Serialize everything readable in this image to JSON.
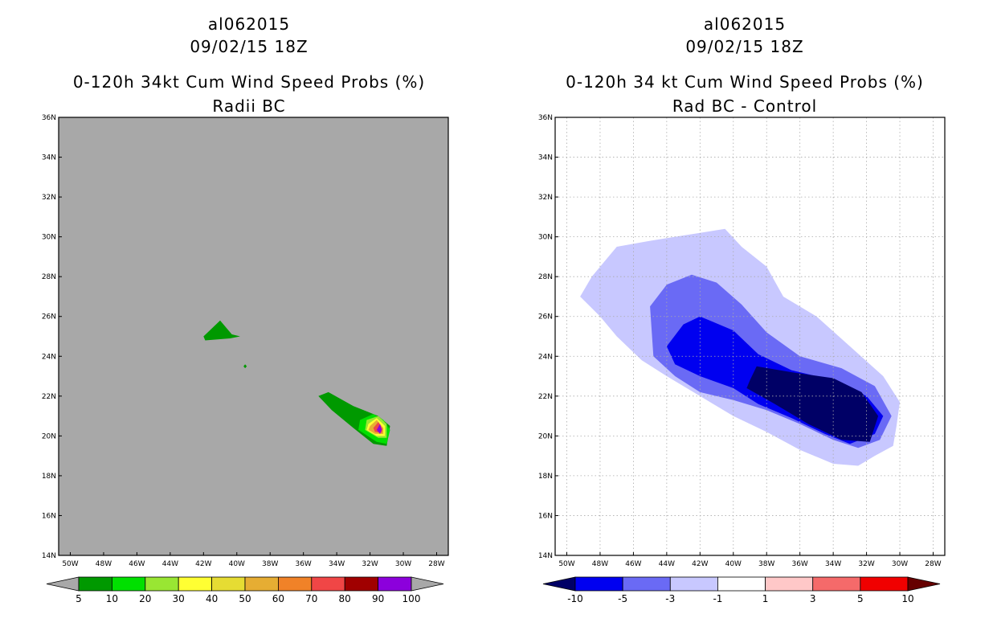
{
  "chart_data": [
    {
      "type": "contour-map",
      "id_line": "al062015",
      "date_line": "09/02/15 18Z",
      "title": "0-120h 34kt Cum Wind Speed Probs (%)",
      "subtitle": "Radii BC",
      "background_color": "#a8a8a8",
      "grid": false,
      "lon_ticks": [
        "50W",
        "48W",
        "46W",
        "44W",
        "42W",
        "40W",
        "38W",
        "36W",
        "34W",
        "32W",
        "30W",
        "28W"
      ],
      "lat_ticks": [
        "14N",
        "16N",
        "18N",
        "20N",
        "22N",
        "24N",
        "26N",
        "28N",
        "30N",
        "32N",
        "34N",
        "36N"
      ],
      "lon_range": [
        -50.7,
        -27.3
      ],
      "lat_range": [
        14,
        36
      ],
      "colorbar": {
        "labels": [
          "5",
          "10",
          "20",
          "30",
          "40",
          "50",
          "60",
          "70",
          "80",
          "90",
          "100"
        ],
        "colors": [
          "#009900",
          "#00e000",
          "#99e633",
          "#ffff33",
          "#e6dc33",
          "#e6ad33",
          "#f08228",
          "#f04646",
          "#a00000",
          "#8c00dc"
        ],
        "under_color": "#a8a8a8",
        "over_color": "#a8a8a8"
      },
      "regions": [
        {
          "level": "5-10",
          "color": "#009900",
          "points": [
            [
              -42,
              25
            ],
            [
              -41,
              25.8
            ],
            [
              -40.3,
              25.1
            ],
            [
              -39.8,
              25.0
            ],
            [
              -40.4,
              24.9
            ],
            [
              -41.9,
              24.8
            ]
          ]
        },
        {
          "level": "5-10",
          "color": "#009900",
          "points": [
            [
              -39.6,
              23.5
            ],
            [
              -39.5,
              23.4
            ],
            [
              -39.4,
              23.5
            ],
            [
              -39.5,
              23.6
            ]
          ]
        },
        {
          "level": "5-10",
          "color": "#009900",
          "points": [
            [
              -35.1,
              22.0
            ],
            [
              -34.5,
              22.2
            ],
            [
              -33,
              21.5
            ],
            [
              -31.5,
              21.0
            ],
            [
              -30.8,
              20.5
            ],
            [
              -31,
              19.5
            ],
            [
              -31.8,
              19.6
            ],
            [
              -33,
              20.4
            ],
            [
              -34.3,
              21.3
            ]
          ]
        },
        {
          "level": "10-20",
          "color": "#00e000",
          "points": [
            [
              -32.6,
              20.8
            ],
            [
              -31.8,
              21.1
            ],
            [
              -31.2,
              20.8
            ],
            [
              -30.8,
              20.3
            ],
            [
              -31,
              19.6
            ],
            [
              -31.6,
              19.7
            ],
            [
              -32.7,
              20.3
            ]
          ]
        },
        {
          "level": "20-30",
          "color": "#99e633",
          "points": [
            [
              -32.2,
              20.8
            ],
            [
              -31.5,
              21.0
            ],
            [
              -31.0,
              20.6
            ],
            [
              -31.0,
              19.9
            ],
            [
              -31.5,
              19.9
            ],
            [
              -32.3,
              20.3
            ]
          ]
        },
        {
          "level": "30-40",
          "color": "#ffff33",
          "points": [
            [
              -32.1,
              20.6
            ],
            [
              -31.6,
              20.9
            ],
            [
              -31.1,
              20.5
            ],
            [
              -31.1,
              20.0
            ],
            [
              -31.6,
              20.0
            ],
            [
              -32.2,
              20.3
            ]
          ]
        },
        {
          "level": "40-50",
          "color": "#e6ad33",
          "points": [
            [
              -32.0,
              20.5
            ],
            [
              -31.6,
              20.8
            ],
            [
              -31.2,
              20.4
            ],
            [
              -31.2,
              20.1
            ],
            [
              -31.7,
              20.1
            ],
            [
              -32.1,
              20.3
            ]
          ]
        },
        {
          "level": "60-70",
          "color": "#f04646",
          "points": [
            [
              -31.8,
              20.4
            ],
            [
              -31.5,
              20.7
            ],
            [
              -31.25,
              20.35
            ],
            [
              -31.3,
              20.15
            ],
            [
              -31.7,
              20.2
            ]
          ]
        },
        {
          "level": "90-100",
          "color": "#8c00dc",
          "points": [
            [
              -31.6,
              20.3
            ],
            [
              -31.4,
              20.6
            ],
            [
              -31.3,
              20.3
            ],
            [
              -31.4,
              20.1
            ]
          ]
        }
      ]
    },
    {
      "type": "contour-map",
      "id_line": "al062015",
      "date_line": "09/02/15 18Z",
      "title": "0-120h 34 kt Cum Wind Speed Probs (%)",
      "subtitle": "Rad BC - Control",
      "background_color": "#ffffff",
      "grid": true,
      "lon_ticks": [
        "50W",
        "48W",
        "46W",
        "44W",
        "42W",
        "40W",
        "38W",
        "36W",
        "34W",
        "32W",
        "30W",
        "28W"
      ],
      "lat_ticks": [
        "14N",
        "16N",
        "18N",
        "20N",
        "22N",
        "24N",
        "26N",
        "28N",
        "30N",
        "32N",
        "34N",
        "36N"
      ],
      "lon_range": [
        -50.7,
        -27.3
      ],
      "lat_range": [
        14,
        36
      ],
      "colorbar": {
        "labels": [
          "-10",
          "-5",
          "-3",
          "-1",
          "1",
          "3",
          "5",
          "10"
        ],
        "colors": [
          "#0000f0",
          "#6a6af5",
          "#c8c8ff",
          "#ffffff",
          "#ffc8c8",
          "#f56a6a",
          "#f00000"
        ],
        "under_color": "#000066",
        "over_color": "#660000"
      },
      "regions": [
        {
          "level": "-3 to -1",
          "color": "#c8c8ff",
          "points": [
            [
              -48.5,
              28
            ],
            [
              -47,
              29.5
            ],
            [
              -45,
              29.8
            ],
            [
              -43.5,
              30
            ],
            [
              -42,
              30.2
            ],
            [
              -40.5,
              30.4
            ],
            [
              -39.5,
              29.5
            ],
            [
              -38,
              28.5
            ],
            [
              -37,
              27
            ],
            [
              -35,
              26
            ],
            [
              -33,
              24.5
            ],
            [
              -31,
              23
            ],
            [
              -30,
              21.7
            ],
            [
              -30.2,
              20.5
            ],
            [
              -30.4,
              19.5
            ],
            [
              -31.5,
              19
            ],
            [
              -32.5,
              18.5
            ],
            [
              -34,
              18.6
            ],
            [
              -36,
              19.3
            ],
            [
              -38,
              20.2
            ],
            [
              -40,
              21
            ],
            [
              -42,
              22
            ],
            [
              -44,
              23
            ],
            [
              -45.5,
              23.8
            ],
            [
              -47,
              25
            ],
            [
              -48,
              26
            ],
            [
              -49.2,
              27
            ]
          ]
        },
        {
          "level": "-5 to -3",
          "color": "#6a6af5",
          "points": [
            [
              -45,
              26.5
            ],
            [
              -44,
              27.6
            ],
            [
              -42.5,
              28.1
            ],
            [
              -41,
              27.7
            ],
            [
              -39.5,
              26.6
            ],
            [
              -38,
              25.2
            ],
            [
              -36,
              24
            ],
            [
              -33.5,
              23.4
            ],
            [
              -31.5,
              22.5
            ],
            [
              -30.5,
              21
            ],
            [
              -31.2,
              19.8
            ],
            [
              -32.5,
              19.4
            ],
            [
              -34,
              19.8
            ],
            [
              -36,
              20.6
            ],
            [
              -38,
              21.3
            ],
            [
              -40,
              21.8
            ],
            [
              -42,
              22.2
            ],
            [
              -43.5,
              23
            ],
            [
              -44.8,
              24
            ]
          ]
        },
        {
          "level": "-10 to -5",
          "color": "#0000f0",
          "points": [
            [
              -44,
              24.5
            ],
            [
              -43,
              25.6
            ],
            [
              -42,
              26
            ],
            [
              -40,
              25.3
            ],
            [
              -38.5,
              24.1
            ],
            [
              -36.5,
              23.3
            ],
            [
              -34,
              22.8
            ],
            [
              -32,
              22
            ],
            [
              -31,
              21
            ],
            [
              -31.5,
              20.1
            ],
            [
              -33,
              19.6
            ],
            [
              -34.5,
              20.1
            ],
            [
              -36.5,
              20.9
            ],
            [
              -38.5,
              21.6
            ],
            [
              -40,
              22.4
            ],
            [
              -42,
              23
            ],
            [
              -43.5,
              23.6
            ]
          ]
        },
        {
          "level": "< -10",
          "color": "#000066",
          "points": [
            [
              -39,
              22.8
            ],
            [
              -38.6,
              23.5
            ],
            [
              -36.5,
              23.2
            ],
            [
              -34,
              22.9
            ],
            [
              -32.3,
              22.2
            ],
            [
              -31.3,
              21
            ],
            [
              -31.8,
              19.7
            ],
            [
              -33.5,
              19.8
            ],
            [
              -35.5,
              20.6
            ],
            [
              -37.5,
              21.6
            ],
            [
              -39.2,
              22.4
            ]
          ]
        }
      ]
    }
  ]
}
